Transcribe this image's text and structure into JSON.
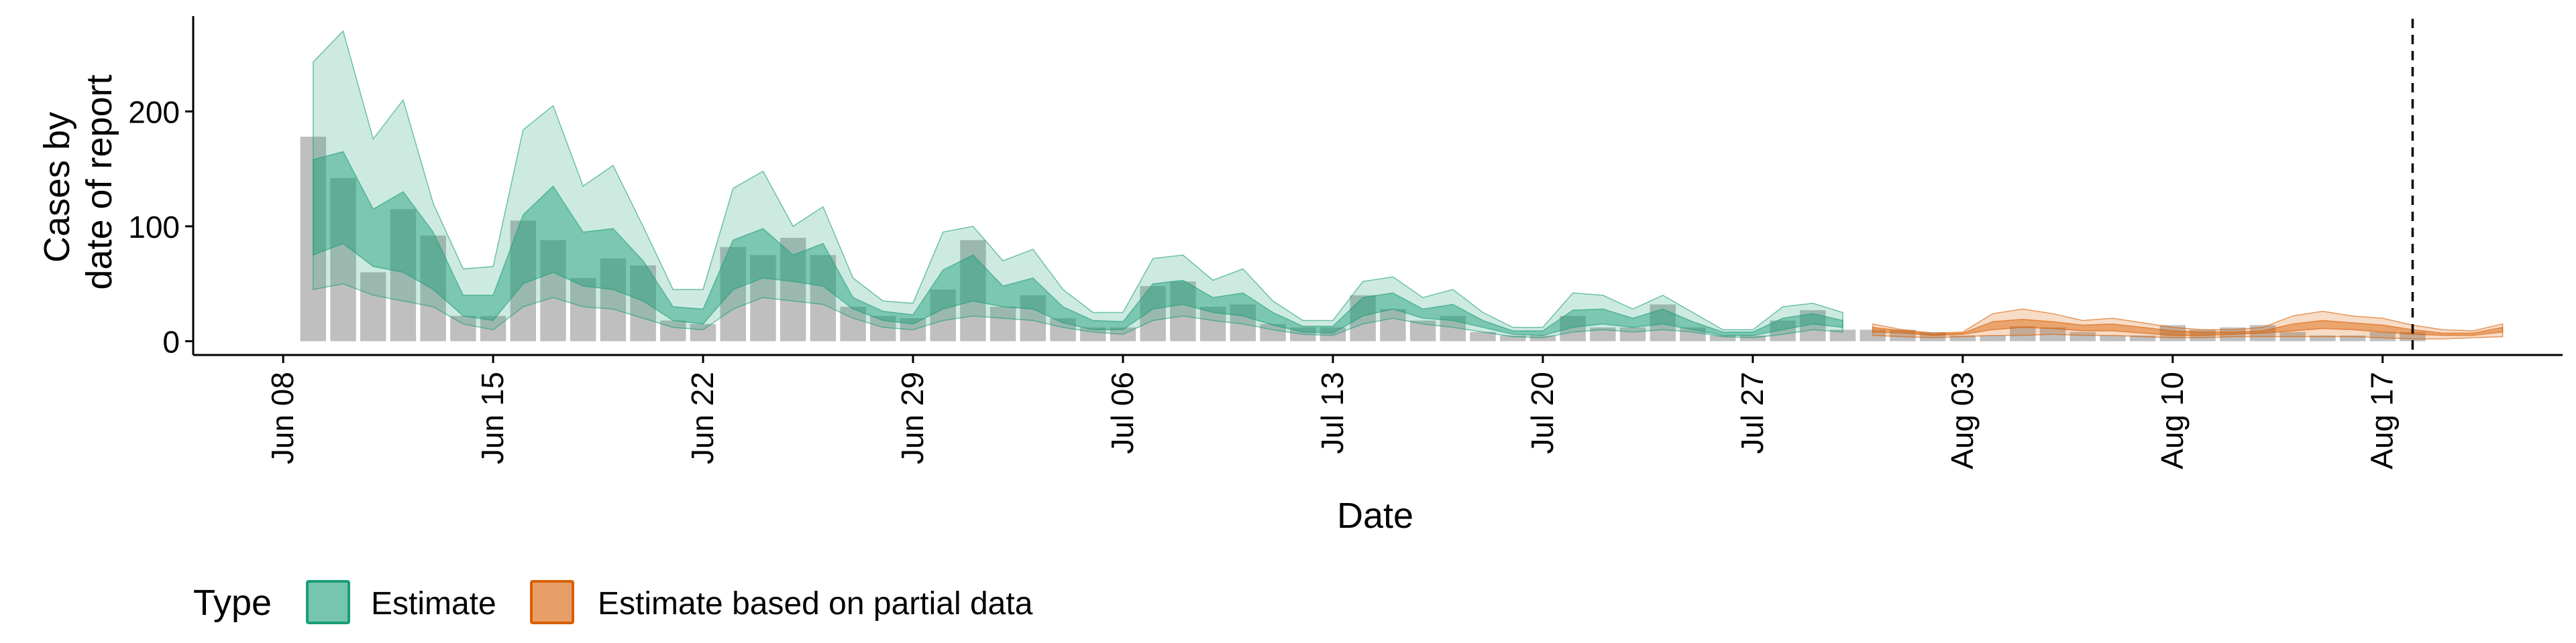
{
  "chart_data": {
    "type": "area",
    "xlabel": "Date",
    "ylabel_lines": [
      "Cases by",
      "date of report"
    ],
    "x_start": "2020-06-09",
    "yticks": [
      0,
      100,
      200
    ],
    "ylim": [
      -12,
      283
    ],
    "xlim": [
      "2020-06-05",
      "2020-08-23"
    ],
    "xticks": [
      {
        "date": "2020-06-08",
        "label": "Jun 08"
      },
      {
        "date": "2020-06-15",
        "label": "Jun 15"
      },
      {
        "date": "2020-06-22",
        "label": "Jun 22"
      },
      {
        "date": "2020-06-29",
        "label": "Jun 29"
      },
      {
        "date": "2020-07-06",
        "label": "Jul 06"
      },
      {
        "date": "2020-07-13",
        "label": "Jul 13"
      },
      {
        "date": "2020-07-20",
        "label": "Jul 20"
      },
      {
        "date": "2020-07-27",
        "label": "Jul 27"
      },
      {
        "date": "2020-08-03",
        "label": "Aug 03"
      },
      {
        "date": "2020-08-10",
        "label": "Aug 10"
      },
      {
        "date": "2020-08-17",
        "label": "Aug 17"
      }
    ],
    "reported_cases": [
      178,
      142,
      60,
      115,
      92,
      22,
      22,
      105,
      88,
      55,
      72,
      66,
      18,
      15,
      82,
      75,
      90,
      75,
      30,
      22,
      20,
      45,
      88,
      30,
      40,
      20,
      12,
      12,
      48,
      52,
      30,
      32,
      15,
      12,
      12,
      40,
      28,
      18,
      22,
      8,
      5,
      5,
      22,
      12,
      12,
      32,
      12,
      5,
      5,
      18,
      27,
      10,
      10,
      10,
      8,
      5,
      5,
      13,
      12,
      8,
      5,
      5,
      14,
      10,
      12,
      14,
      8,
      5,
      5,
      8,
      8
    ],
    "series": [
      {
        "name": "Estimate",
        "color": "#1b9e77",
        "lower90": [
          45,
          50,
          40,
          35,
          30,
          15,
          10,
          30,
          38,
          30,
          28,
          20,
          12,
          10,
          28,
          38,
          35,
          32,
          20,
          12,
          10,
          18,
          22,
          20,
          18,
          12,
          8,
          6,
          18,
          22,
          18,
          15,
          10,
          6,
          5,
          15,
          20,
          15,
          12,
          8,
          4,
          3,
          8,
          10,
          8,
          10,
          8,
          4,
          3,
          6,
          10,
          8
        ],
        "upper90": [
          243,
          270,
          176,
          210,
          120,
          63,
          65,
          184,
          205,
          135,
          153,
          100,
          45,
          45,
          133,
          148,
          100,
          117,
          55,
          35,
          33,
          95,
          100,
          70,
          80,
          45,
          25,
          25,
          72,
          75,
          53,
          63,
          35,
          18,
          18,
          52,
          56,
          38,
          45,
          25,
          12,
          12,
          42,
          40,
          28,
          40,
          25,
          10,
          10,
          30,
          33,
          25
        ],
        "lower50": [
          75,
          85,
          65,
          60,
          45,
          22,
          18,
          50,
          60,
          48,
          45,
          35,
          18,
          15,
          45,
          55,
          52,
          48,
          28,
          18,
          15,
          28,
          35,
          30,
          28,
          16,
          10,
          10,
          28,
          32,
          25,
          22,
          14,
          8,
          7,
          22,
          28,
          20,
          18,
          12,
          6,
          5,
          12,
          15,
          12,
          15,
          10,
          5,
          5,
          10,
          15,
          12
        ],
        "upper50": [
          158,
          165,
          115,
          130,
          95,
          40,
          40,
          110,
          135,
          95,
          98,
          70,
          30,
          28,
          88,
          98,
          75,
          85,
          38,
          26,
          23,
          62,
          75,
          48,
          55,
          30,
          18,
          17,
          50,
          53,
          38,
          42,
          25,
          13,
          13,
          38,
          42,
          28,
          32,
          18,
          9,
          9,
          27,
          28,
          20,
          28,
          17,
          8,
          8,
          20,
          24,
          18
        ]
      },
      {
        "name": "Estimate based on partial data",
        "color": "#d95f02",
        "lower90": [
          5,
          4,
          3,
          4,
          5,
          5,
          6,
          5,
          5,
          4,
          3,
          3,
          4,
          4,
          4,
          4,
          4,
          3,
          2,
          2,
          3,
          4
        ],
        "upper90": [
          15,
          10,
          7,
          8,
          24,
          28,
          24,
          18,
          20,
          16,
          12,
          10,
          10,
          12,
          22,
          26,
          22,
          20,
          14,
          10,
          9,
          15
        ],
        "lower50": [
          8,
          7,
          5,
          6,
          10,
          12,
          11,
          9,
          9,
          7,
          5,
          5,
          6,
          7,
          9,
          11,
          10,
          8,
          6,
          5,
          5,
          8
        ],
        "upper50": [
          12,
          9,
          6,
          7,
          17,
          19,
          17,
          14,
          15,
          12,
          9,
          8,
          8,
          9,
          15,
          18,
          16,
          14,
          10,
          7,
          7,
          12
        ]
      }
    ],
    "vline_date": "2020-08-18",
    "legend": {
      "title": "Type",
      "position": "bottom-left",
      "items": [
        "Estimate",
        "Estimate based on partial data"
      ]
    }
  }
}
